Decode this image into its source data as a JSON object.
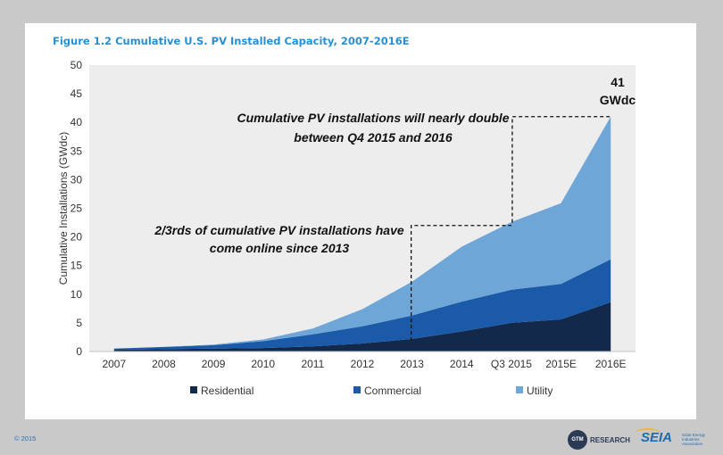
{
  "figure_title": "Figure 1.2  Cumulative U.S. PV Installed Capacity, 2007-2016E",
  "copyright": "© 2015",
  "logos": {
    "gtm_text": "RESEARCH",
    "gtm_badge": "GTM",
    "seia_text": "SEIA",
    "seia_sub": "Solar Energy Industries Association"
  },
  "annotations": {
    "double_line1": "Cumulative PV installations will nearly double",
    "double_line2": "between Q4 2015 and 2016",
    "twothirds_line1": "2/3rds of cumulative PV installations have",
    "twothirds_line2": "come online since 2013",
    "total_value": "41",
    "total_unit": "GWdc"
  },
  "chart_data": {
    "type": "area",
    "stacked": true,
    "title": "Figure 1.2  Cumulative U.S. PV Installed Capacity, 2007-2016E",
    "xlabel": "",
    "ylabel": "Cumulative Installations (GWdc)",
    "ylim": [
      0,
      50
    ],
    "yticks": [
      0,
      5,
      10,
      15,
      20,
      25,
      30,
      35,
      40,
      45,
      50
    ],
    "categories": [
      "2007",
      "2008",
      "2009",
      "2010",
      "2011",
      "2012",
      "2013",
      "2014",
      "Q3 2015",
      "2015E",
      "2016E"
    ],
    "series": [
      {
        "name": "Residential",
        "color": "#13294b",
        "values": [
          0.3,
          0.4,
          0.5,
          0.6,
          0.9,
          1.4,
          2.2,
          3.5,
          5.0,
          5.6,
          8.6
        ]
      },
      {
        "name": "Commercial",
        "color": "#1a5aa8",
        "values": [
          0.2,
          0.4,
          0.6,
          1.2,
          2.1,
          3.0,
          4.1,
          5.2,
          5.8,
          6.2,
          7.5
        ]
      },
      {
        "name": "Utility",
        "color": "#6ea6d8",
        "values": [
          0.0,
          0.0,
          0.1,
          0.3,
          1.0,
          3.0,
          5.9,
          9.6,
          11.8,
          14.1,
          24.9
        ]
      }
    ],
    "legend_position": "bottom",
    "plot_background": "#ededed",
    "grid": false
  }
}
